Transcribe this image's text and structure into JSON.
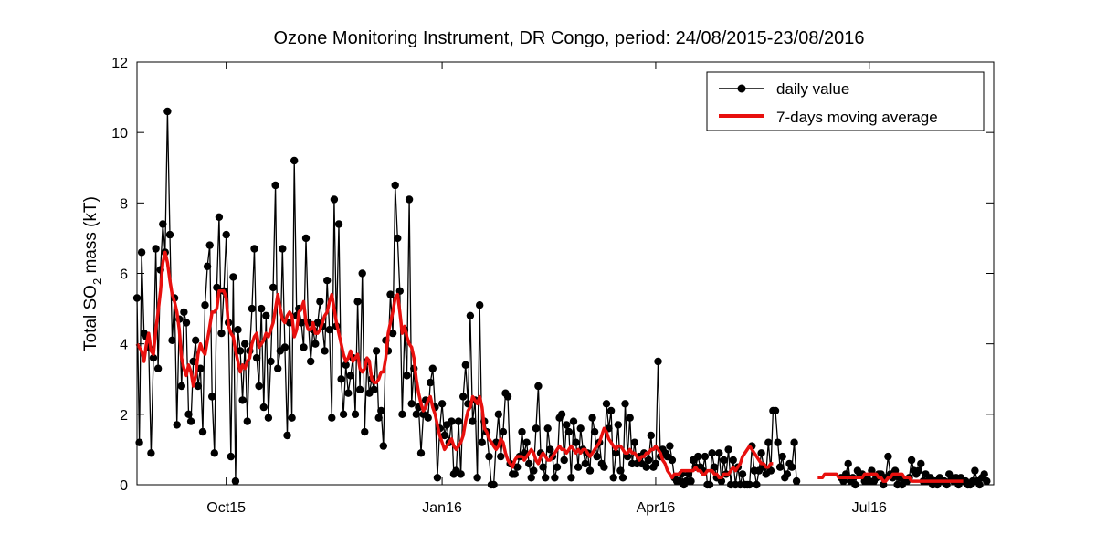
{
  "chart_data": {
    "type": "line",
    "title": "Ozone Monitoring Instrument, DR Congo, period: 24/08/2015-23/08/2016",
    "ylabel_main": "Total SO",
    "ylabel_sub": "2",
    "ylabel_tail": " mass (kT)",
    "x_start": "2015-08-24",
    "x_end": "2016-08-23",
    "xticks": [
      {
        "label": "Oct15",
        "date": "2015-10-01"
      },
      {
        "label": "Jan16",
        "date": "2016-01-01"
      },
      {
        "label": "Apr16",
        "date": "2016-04-01"
      },
      {
        "label": "Jul16",
        "date": "2016-07-01"
      }
    ],
    "ylim": [
      0,
      12
    ],
    "yticks": [
      "0",
      "2",
      "4",
      "6",
      "8",
      "10",
      "12"
    ],
    "legend_position": "top-right",
    "colors": {
      "daily": "#000000",
      "average": "#e8100e"
    },
    "series": [
      {
        "name": "daily value",
        "start_date": "2015-08-24",
        "values": [
          5.3,
          1.2,
          6.6,
          4.3,
          4.2,
          3.9,
          0.9,
          3.6,
          6.7,
          3.3,
          6.1,
          7.4,
          6.6,
          10.6,
          7.1,
          4.1,
          5.3,
          1.7,
          4.7,
          2.8,
          4.9,
          4.6,
          2.0,
          1.8,
          3.5,
          4.1,
          2.8,
          3.3,
          1.5,
          5.1,
          6.2,
          6.8,
          2.5,
          0.9,
          5.6,
          7.6,
          4.3,
          5.5,
          7.1,
          4.6,
          0.8,
          5.9,
          0.1,
          4.4,
          3.8,
          2.4,
          4.0,
          1.8,
          3.8,
          5.0,
          6.7,
          3.6,
          2.8,
          5.0,
          2.2,
          4.8,
          1.9,
          3.5,
          5.6,
          8.5,
          3.3,
          3.8,
          6.7,
          3.9,
          1.4,
          4.6,
          1.9,
          9.2,
          4.8,
          5.0,
          4.6,
          3.9,
          7.0,
          4.6,
          3.5,
          4.4,
          4.0,
          4.6,
          5.2,
          4.5,
          3.8,
          5.8,
          4.4,
          1.9,
          8.1,
          4.5,
          7.4,
          3.0,
          2.0,
          3.4,
          2.6,
          3.1,
          3.6,
          2.0,
          5.2,
          2.7,
          6.0,
          1.5,
          3.5,
          2.6,
          3.0,
          2.7,
          3.8,
          1.9,
          2.1,
          1.1,
          4.1,
          3.8,
          5.4,
          4.3,
          8.5,
          7.0,
          5.5,
          2.0,
          4.4,
          3.1,
          8.1,
          2.3,
          3.3,
          2.0,
          2.2,
          0.9,
          2.0,
          2.4,
          1.9,
          2.9,
          3.3,
          2.2,
          0.2,
          1.6,
          2.3,
          1.4,
          1.7,
          1.2,
          1.8,
          0.3,
          0.4,
          1.8,
          0.3,
          2.5,
          3.4,
          2.3,
          4.8,
          1.8,
          2.4,
          0.2,
          5.1,
          1.2,
          1.8,
          1.5,
          0.8,
          0.0,
          0.0,
          1.2,
          2.0,
          0.8,
          1.5,
          2.6,
          2.5,
          0.6,
          0.3,
          0.3,
          0.5,
          0.8,
          1.5,
          0.9,
          1.2,
          0.6,
          0.2,
          0.4,
          1.6,
          2.8,
          0.9,
          0.5,
          0.2,
          1.6,
          1.0,
          0.8,
          0.2,
          0.5,
          1.9,
          2.0,
          0.7,
          1.7,
          1.5,
          0.2,
          1.8,
          1.2,
          0.5,
          1.6,
          1.0,
          0.6,
          0.9,
          0.4,
          1.9,
          1.5,
          0.8,
          1.2,
          0.6,
          0.5,
          2.3,
          1.6,
          2.1,
          0.2,
          0.9,
          1.7,
          0.4,
          0.2,
          2.3,
          0.8,
          1.9,
          0.6,
          1.2,
          0.6,
          0.8,
          0.6,
          0.9,
          0.5,
          0.7,
          1.4,
          0.5,
          0.6,
          3.5,
          0.8,
          1.0,
          0.9,
          0.8,
          1.1,
          0.7,
          0.2,
          0.1,
          0.1,
          0.3,
          0.0,
          0.1,
          0.3,
          0.1,
          0.7,
          0.5,
          0.8,
          0.5,
          0.4,
          0.8,
          0.0,
          0.0,
          0.9,
          0.5,
          0.2,
          0.9,
          0.1,
          0.7,
          0.3,
          1.0,
          0.0,
          0.7,
          0.0,
          0.5,
          0.0,
          0.3,
          0.0,
          0.0,
          0.0,
          1.1,
          0.4,
          0.0,
          0.4,
          0.9,
          0.5,
          0.3,
          1.2,
          0.4,
          2.1,
          2.1,
          1.2,
          0.5,
          0.8,
          0.2,
          0.3,
          0.6,
          0.5,
          1.2,
          0.1,
          null,
          null,
          null,
          null,
          null,
          null,
          null,
          null,
          null,
          null,
          null,
          null,
          null,
          null,
          null,
          null,
          null,
          null,
          0.2,
          0.1,
          0.3,
          0.6,
          0.1,
          0.2,
          0.0,
          0.4,
          0.3,
          0.3,
          0.1,
          0.2,
          0.1,
          0.4,
          0.1,
          0.2,
          0.3,
          0.3,
          0.0,
          0.2,
          0.8,
          0.3,
          0.2,
          0.4,
          0.0,
          0.2,
          0.0,
          0.1,
          0.1,
          0.2,
          0.7,
          0.4,
          0.3,
          0.4,
          0.6,
          0.1,
          0.3,
          0.1,
          0.2,
          0.0,
          0.1,
          0.0,
          0.2,
          0.1,
          0.1,
          0.0,
          0.3,
          0.2,
          0.1,
          0.2,
          0.0,
          0.2,
          0.1,
          0.1,
          0.0,
          0.0,
          0.1,
          0.4,
          0.1,
          0.0,
          0.2,
          0.3,
          0.1
        ]
      },
      {
        "name": "7-days moving average",
        "start_date": "2015-08-24",
        "values": [
          4.0,
          3.9,
          3.8,
          3.5,
          4.0,
          4.3,
          3.8,
          3.7,
          4.4,
          4.9,
          5.5,
          6.3,
          6.6,
          6.3,
          5.8,
          5.4,
          5.2,
          4.9,
          4.4,
          3.6,
          3.3,
          3.1,
          3.4,
          3.2,
          2.8,
          3.1,
          3.7,
          4.0,
          3.8,
          3.7,
          4.1,
          4.5,
          4.9,
          4.9,
          5.0,
          5.5,
          5.5,
          5.5,
          5.3,
          4.5,
          4.3,
          4.2,
          3.8,
          3.5,
          3.2,
          3.4,
          3.3,
          3.5,
          3.6,
          4.0,
          4.2,
          4.3,
          3.9,
          4.0,
          4.1,
          4.3,
          4.2,
          4.4,
          4.6,
          5.0,
          5.4,
          5.0,
          4.7,
          4.6,
          4.8,
          4.9,
          4.8,
          4.2,
          4.4,
          4.9,
          5.0,
          5.2,
          4.6,
          4.4,
          4.4,
          4.6,
          4.3,
          4.3,
          4.4,
          4.6,
          4.8,
          4.9,
          5.2,
          5.4,
          5.0,
          4.6,
          4.3,
          4.0,
          3.7,
          3.5,
          3.6,
          3.8,
          3.5,
          3.6,
          3.7,
          3.3,
          3.2,
          3.3,
          3.6,
          3.5,
          3.0,
          2.9,
          2.9,
          3.0,
          3.2,
          3.2,
          3.6,
          4.3,
          4.6,
          4.9,
          5.3,
          5.4,
          4.9,
          4.3,
          4.5,
          4.2,
          4.0,
          3.9,
          3.6,
          3.0,
          2.6,
          2.3,
          2.1,
          2.2,
          2.4,
          2.5,
          2.2,
          2.0,
          1.7,
          1.4,
          1.2,
          1.0,
          1.1,
          1.2,
          1.3,
          1.1,
          1.0,
          1.1,
          1.2,
          1.4,
          1.8,
          2.1,
          2.2,
          2.5,
          2.4,
          2.3,
          2.5,
          2.2,
          1.6,
          1.5,
          1.3,
          1.2,
          1.1,
          1.0,
          1.1,
          1.3,
          1.2,
          0.9,
          0.7,
          0.6,
          0.5,
          0.7,
          0.8,
          0.8,
          0.8,
          0.7,
          0.8,
          0.9,
          1.0,
          0.9,
          0.7,
          0.6,
          0.8,
          0.9,
          0.8,
          0.7,
          0.7,
          0.8,
          0.9,
          1.0,
          1.1,
          1.0,
          1.0,
          0.9,
          1.0,
          1.1,
          1.0,
          0.9,
          1.0,
          0.9,
          1.0,
          1.0,
          0.9,
          0.8,
          0.9,
          1.0,
          1.1,
          1.2,
          1.4,
          1.6,
          1.5,
          1.3,
          1.2,
          1.1,
          1.0,
          1.1,
          1.1,
          1.0,
          0.9,
          0.9,
          1.0,
          0.9,
          0.9,
          0.8,
          0.7,
          0.8,
          0.8,
          0.9,
          0.9,
          1.0,
          1.0,
          1.1,
          1.0,
          0.9,
          0.7,
          0.6,
          0.4,
          0.3,
          0.2,
          0.3,
          0.3,
          0.3,
          0.4,
          0.4,
          0.4,
          0.4,
          0.4,
          0.4,
          0.5,
          0.4,
          0.4,
          0.3,
          0.3,
          0.4,
          0.4,
          0.4,
          0.3,
          0.3,
          0.2,
          0.2,
          0.3,
          0.3,
          0.3,
          0.4,
          0.5,
          0.4,
          0.5,
          0.6,
          0.8,
          0.9,
          1.0,
          1.1,
          1.0,
          0.9,
          0.8,
          0.7,
          0.6,
          0.6,
          0.5,
          0.5,
          0.6,
          0.6,
          null,
          null,
          null,
          null,
          null,
          null,
          null,
          null,
          null,
          null,
          null,
          null,
          null,
          null,
          null,
          null,
          null,
          null,
          0.2,
          0.2,
          0.2,
          0.3,
          0.3,
          0.3,
          0.3,
          0.3,
          0.3,
          0.2,
          0.2,
          0.2,
          0.2,
          0.2,
          0.2,
          0.2,
          0.2,
          0.2,
          0.2,
          0.2,
          0.3,
          0.3,
          0.3,
          0.3,
          0.3,
          0.3,
          0.2,
          0.2,
          0.1,
          0.1,
          0.2,
          0.2,
          0.3,
          0.3,
          0.3,
          0.3,
          0.3,
          0.2,
          0.2,
          0.2,
          0.1,
          0.1,
          0.1,
          0.1,
          0.1,
          0.1,
          0.1,
          0.1,
          0.1,
          0.1,
          0.1,
          0.1,
          0.1,
          0.1,
          0.1,
          0.1,
          0.1,
          0.1,
          0.1,
          0.1,
          0.1,
          0.1,
          0.1
        ]
      }
    ]
  }
}
